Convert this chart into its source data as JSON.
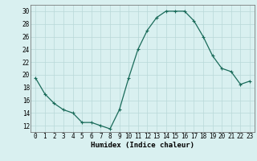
{
  "x": [
    0,
    1,
    2,
    3,
    4,
    5,
    6,
    7,
    8,
    9,
    10,
    11,
    12,
    13,
    14,
    15,
    16,
    17,
    18,
    19,
    20,
    21,
    22,
    23
  ],
  "y": [
    19.5,
    17.0,
    15.5,
    14.5,
    14.0,
    12.5,
    12.5,
    12.0,
    11.5,
    14.5,
    19.5,
    24.0,
    27.0,
    29.0,
    30.0,
    30.0,
    30.0,
    28.5,
    26.0,
    23.0,
    21.0,
    20.5,
    18.5,
    19.0
  ],
  "xlabel": "Humidex (Indice chaleur)",
  "ylim": [
    11,
    31
  ],
  "xlim": [
    -0.5,
    23.5
  ],
  "yticks": [
    12,
    14,
    16,
    18,
    20,
    22,
    24,
    26,
    28,
    30
  ],
  "xticks": [
    0,
    1,
    2,
    3,
    4,
    5,
    6,
    7,
    8,
    9,
    10,
    11,
    12,
    13,
    14,
    15,
    16,
    17,
    18,
    19,
    20,
    21,
    22,
    23
  ],
  "line_color": "#1a6b5a",
  "marker": "+",
  "marker_size": 3,
  "bg_color": "#d9f0f0",
  "grid_color": "#b8d8d8",
  "xlabel_fontsize": 6.5,
  "tick_fontsize": 5.5,
  "linewidth": 0.9
}
